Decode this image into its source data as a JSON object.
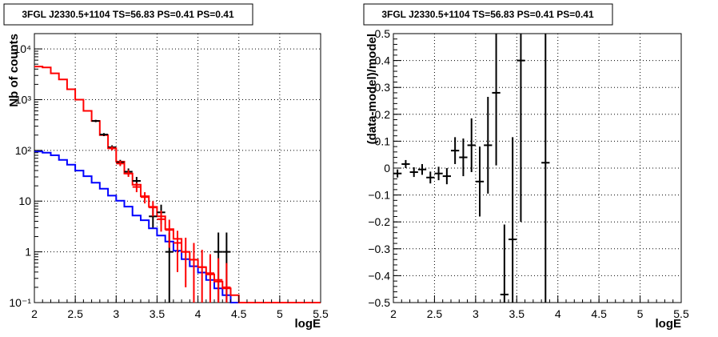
{
  "chart_data": [
    {
      "type": "histogram",
      "title": "3FGL J2330.5+1104 TS=56.83 PS=0.41 PS=0.41",
      "xlabel": "logE",
      "ylabel": "Nb of counts",
      "xlim": [
        2,
        5.5
      ],
      "ylim": [
        0.1,
        20000
      ],
      "yscale": "log",
      "grid": true,
      "x_ticks": [
        "2",
        "2.5",
        "3",
        "3.5",
        "4",
        "4.5",
        "5",
        "5.5"
      ],
      "y_ticks": [
        "10⁻¹",
        "1",
        "10",
        "10²",
        "10³",
        "10⁴"
      ],
      "bin_edges": [
        2.0,
        2.1,
        2.2,
        2.3,
        2.4,
        2.5,
        2.6,
        2.7,
        2.8,
        2.9,
        3.0,
        3.1,
        3.2,
        3.3,
        3.4,
        3.5,
        3.6,
        3.7,
        3.8,
        3.9,
        4.0,
        4.1,
        4.2,
        4.3,
        4.4,
        4.5,
        4.6,
        4.7,
        4.8,
        4.9,
        5.0,
        5.1,
        5.2,
        5.3,
        5.4,
        5.5
      ],
      "series": [
        {
          "style": "step-line",
          "color": "#0000ff",
          "values": [
            95,
            90,
            80,
            65,
            52,
            40,
            31,
            23,
            17.5,
            12.8,
            10.2,
            7.8,
            5.2,
            4.2,
            2.9,
            2.1,
            1.6,
            1.05,
            0.72,
            0.52,
            0.39,
            0.28,
            0.19,
            0.14,
            0.1,
            0.1,
            0.1,
            0.1,
            0.1,
            0.1,
            0.1,
            0.1,
            0.1,
            0.1,
            0.1
          ]
        },
        {
          "style": "step-line",
          "color": "#ff0000",
          "values": [
            4500,
            4300,
            3300,
            2500,
            1600,
            1000,
            600,
            380,
            200,
            110,
            60,
            35,
            21,
            12.5,
            7.7,
            5.0,
            2.8,
            1.8,
            1.0,
            0.7,
            0.5,
            0.36,
            0.26,
            0.19,
            0.14,
            0.1,
            0.1,
            0.1,
            0.1,
            0.1,
            0.1,
            0.1,
            0.1,
            0.1,
            0.1
          ]
        },
        {
          "style": "errorbar",
          "color": "#000000",
          "points": [
            {
              "x": 2.75,
              "y": 380,
              "lo": 360,
              "hi": 400
            },
            {
              "x": 2.85,
              "y": 205,
              "lo": 191,
              "hi": 219
            },
            {
              "x": 2.95,
              "y": 115,
              "lo": 104,
              "hi": 126
            },
            {
              "x": 3.05,
              "y": 58,
              "lo": 51,
              "hi": 65
            },
            {
              "x": 3.15,
              "y": 38,
              "lo": 32,
              "hi": 44
            },
            {
              "x": 3.25,
              "y": 25,
              "lo": 20,
              "hi": 30
            },
            {
              "x": 3.45,
              "y": 5,
              "lo": 3,
              "hi": 7.5
            },
            {
              "x": 3.55,
              "y": 6,
              "lo": 3.5,
              "hi": 8.5
            },
            {
              "x": 3.65,
              "y": 1,
              "lo": 0.1,
              "hi": 2.4
            },
            {
              "x": 4.25,
              "y": 1,
              "lo": 0.1,
              "hi": 2.4
            },
            {
              "x": 4.35,
              "y": 1,
              "lo": 0.1,
              "hi": 2.4
            }
          ]
        },
        {
          "style": "errorbar",
          "color": "#ff0000",
          "points": [
            {
              "x": 2.95,
              "y": 110,
              "lo": 100,
              "hi": 120
            },
            {
              "x": 3.05,
              "y": 55,
              "lo": 49,
              "hi": 62
            },
            {
              "x": 3.15,
              "y": 35,
              "lo": 30,
              "hi": 41
            },
            {
              "x": 3.25,
              "y": 19,
              "lo": 15,
              "hi": 23
            },
            {
              "x": 3.35,
              "y": 12,
              "lo": 9,
              "hi": 15
            },
            {
              "x": 3.45,
              "y": 7.5,
              "lo": 5,
              "hi": 10
            },
            {
              "x": 3.55,
              "y": 4.4,
              "lo": 2.5,
              "hi": 6.5
            },
            {
              "x": 3.65,
              "y": 2.7,
              "lo": 1.2,
              "hi": 4.3
            },
            {
              "x": 3.75,
              "y": 1.5,
              "lo": 0.4,
              "hi": 2.6
            },
            {
              "x": 3.85,
              "y": 1.0,
              "lo": 0.2,
              "hi": 1.9
            },
            {
              "x": 3.95,
              "y": 0.7,
              "lo": 0.1,
              "hi": 1.5
            },
            {
              "x": 4.05,
              "y": 0.5,
              "lo": 0.1,
              "hi": 1.1
            },
            {
              "x": 4.15,
              "y": 0.38,
              "lo": 0.1,
              "hi": 0.9
            },
            {
              "x": 4.25,
              "y": 0.28,
              "lo": 0.1,
              "hi": 0.75
            },
            {
              "x": 4.35,
              "y": 0.2,
              "lo": 0.1,
              "hi": 0.6
            }
          ]
        }
      ]
    },
    {
      "type": "errorbar",
      "title": "3FGL J2330.5+1104 TS=56.83 PS=0.41 PS=0.41",
      "xlabel": "logE",
      "ylabel": "(data-model)/model",
      "xlim": [
        2,
        5.5
      ],
      "ylim": [
        -0.5,
        0.5
      ],
      "grid": true,
      "x_ticks": [
        "2",
        "2.5",
        "3",
        "3.5",
        "4",
        "4.5",
        "5",
        "5.5"
      ],
      "y_ticks": [
        "−0.5",
        "−0.4",
        "−0.3",
        "−0.2",
        "−0.1",
        "0",
        "0.1",
        "0.2",
        "0.3",
        "0.4",
        "0.5"
      ],
      "y_tick_values": [
        -0.5,
        -0.4,
        -0.3,
        -0.2,
        -0.1,
        0,
        0.1,
        0.2,
        0.3,
        0.4,
        0.5
      ],
      "series": [
        {
          "color": "#000000",
          "points": [
            {
              "x": 2.05,
              "y": -0.02,
              "err": 0.015
            },
            {
              "x": 2.15,
              "y": 0.015,
              "err": 0.015
            },
            {
              "x": 2.25,
              "y": -0.015,
              "err": 0.018
            },
            {
              "x": 2.35,
              "y": -0.005,
              "err": 0.02
            },
            {
              "x": 2.45,
              "y": -0.035,
              "err": 0.022
            },
            {
              "x": 2.55,
              "y": -0.02,
              "err": 0.025
            },
            {
              "x": 2.65,
              "y": -0.03,
              "err": 0.03
            },
            {
              "x": 2.75,
              "y": 0.065,
              "err": 0.05
            },
            {
              "x": 2.85,
              "y": 0.04,
              "err": 0.07
            },
            {
              "x": 2.95,
              "y": 0.085,
              "err": 0.1
            },
            {
              "x": 3.05,
              "y": -0.05,
              "err": 0.13
            },
            {
              "x": 3.15,
              "y": 0.085,
              "err": 0.18
            },
            {
              "x": 3.25,
              "y": 0.28,
              "err": 0.27
            },
            {
              "x": 3.35,
              "y": -0.47,
              "err": 0.26
            },
            {
              "x": 3.45,
              "y": -0.265,
              "err": 0.38
            },
            {
              "x": 3.55,
              "y": 0.4,
              "err": 0.6
            },
            {
              "x": 3.85,
              "y": 0.02,
              "err": 1.0
            }
          ]
        }
      ]
    }
  ]
}
